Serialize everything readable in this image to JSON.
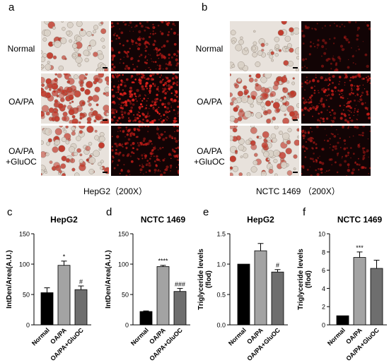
{
  "micro": {
    "a": {
      "letter": "a",
      "caption": "HepG2（200X）",
      "rows": [
        "Normal",
        "OA/PA",
        "OA/PA\n+GluOC"
      ],
      "density": [
        0.35,
        0.95,
        0.55
      ],
      "red_intensity": [
        0.5,
        0.95,
        0.55
      ]
    },
    "b": {
      "letter": "b",
      "caption": "NCTC 1469 （200X）",
      "rows": [
        "Normal",
        "OA/PA",
        "OA/PA\n+GluOC"
      ],
      "density": [
        0.15,
        0.75,
        0.45
      ],
      "red_intensity": [
        0.12,
        0.6,
        0.35
      ]
    }
  },
  "colors": {
    "normal": "#000000",
    "oapa": "#a3a3a3",
    "gluoc": "#6e6e6e",
    "oil_red": "#c0392b",
    "fluor_red": "#e0211c",
    "bright_bg": "#e8e2dc"
  },
  "chart_data": [
    {
      "letter": "c",
      "type": "bar",
      "title": "HepG2",
      "categories": [
        "Normal",
        "OA/PA",
        "OA/PA+GluOC"
      ],
      "values": [
        53,
        98,
        58
      ],
      "errors": [
        8,
        7,
        6
      ],
      "significance": [
        "",
        "*",
        "#"
      ],
      "ylabel": "IntDen/Area(A.U.)",
      "ylim": [
        0,
        150
      ],
      "yticks": [
        0,
        50,
        100,
        150
      ]
    },
    {
      "letter": "d",
      "type": "bar",
      "title": "NCTC 1469",
      "categories": [
        "Normal",
        "OA/PA",
        "OA/PA+GluOC"
      ],
      "values": [
        22,
        96,
        55
      ],
      "errors": [
        1,
        2,
        5
      ],
      "significance": [
        "",
        "****",
        "###"
      ],
      "ylabel": "IntDen/Area(A.U.)",
      "ylim": [
        0,
        150
      ],
      "yticks": [
        0,
        50,
        100,
        150
      ]
    },
    {
      "letter": "e",
      "type": "bar",
      "title": "HepG2",
      "categories": [
        "Normal",
        "OA/PA",
        "OA/PA+GluOC"
      ],
      "values": [
        1.0,
        1.22,
        0.87
      ],
      "errors": [
        0,
        0.12,
        0.04
      ],
      "significance": [
        "",
        "",
        "#"
      ],
      "ylabel": "Triglyceride levels\n(flod)",
      "ylim": [
        0,
        1.5
      ],
      "yticks": [
        0.0,
        0.5,
        1.0,
        1.5
      ]
    },
    {
      "letter": "f",
      "type": "bar",
      "title": "NCTC 1469",
      "categories": [
        "Normal",
        "OA/PA",
        "OA/PA+GluOC"
      ],
      "values": [
        1.0,
        7.4,
        6.2
      ],
      "errors": [
        0,
        0.6,
        0.9
      ],
      "significance": [
        "",
        "***",
        ""
      ],
      "ylabel": "Triglyceride levels\n(flod)",
      "ylim": [
        0,
        10
      ],
      "yticks": [
        0,
        2,
        4,
        6,
        8,
        10
      ]
    }
  ]
}
